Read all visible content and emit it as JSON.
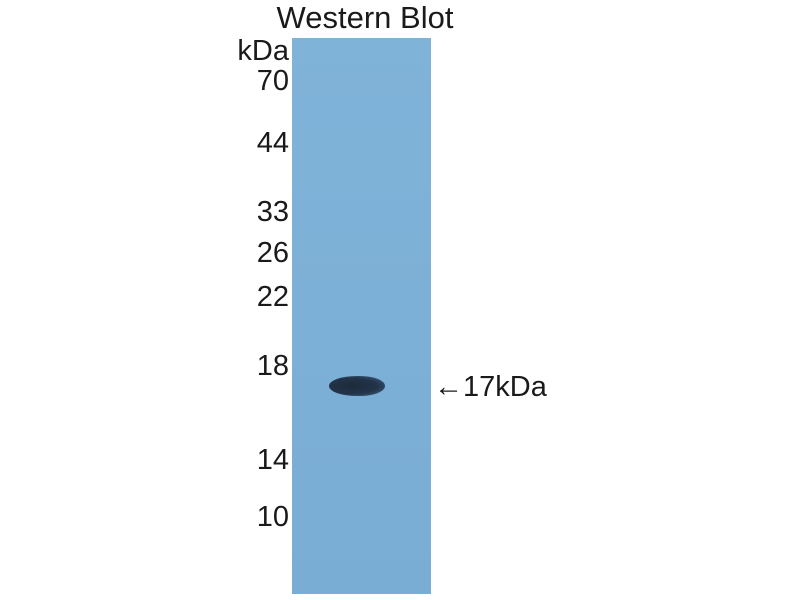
{
  "title": "Western Blot",
  "unit_label": "kDa",
  "markers": [
    "70",
    "44",
    "33",
    "26",
    "22",
    "18",
    "14",
    "10"
  ],
  "band_annotation": {
    "arrow": "←",
    "label": "17kDa"
  },
  "colors": {
    "membrane": "#7fb1d6",
    "band": "#1f2d40"
  }
}
